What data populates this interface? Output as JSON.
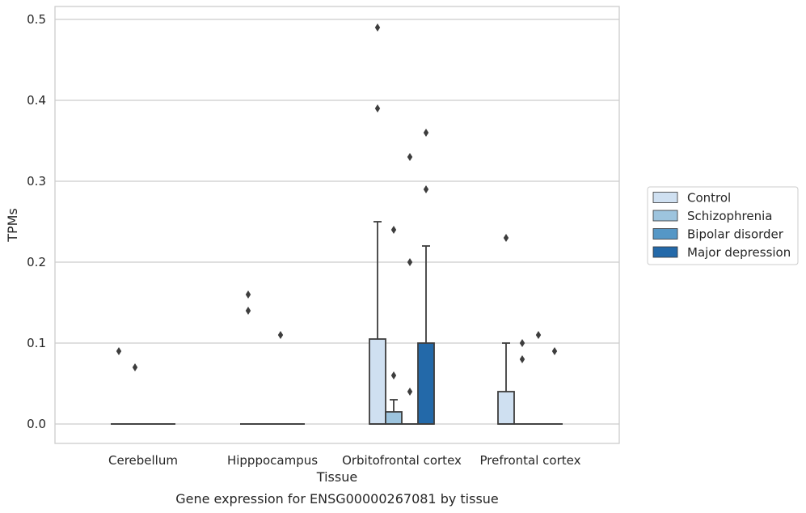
{
  "chart_data": {
    "type": "box",
    "title": "",
    "caption": "Gene expression for ENSG00000267081 by tissue",
    "xlabel": "Tissue",
    "ylabel": "TPMs",
    "ylim": [
      -0.024,
      0.515
    ],
    "yticks": [
      0.0,
      0.1,
      0.2,
      0.3,
      0.4,
      0.5
    ],
    "ytick_labels": [
      "0.0",
      "0.1",
      "0.2",
      "0.3",
      "0.4",
      "0.5"
    ],
    "grid": "horizontal",
    "legend_position": "right",
    "categories": [
      "Cerebellum",
      "Hipppocampus",
      "Orbitofrontal cortex",
      "Prefrontal cortex"
    ],
    "series": [
      {
        "name": "Control",
        "color": "#cfe0f1",
        "boxes": [
          {
            "q1": 0,
            "median": 0,
            "q3": 0,
            "whisker_low": 0,
            "whisker_high": 0,
            "outliers": [
              0.09
            ]
          },
          {
            "q1": 0,
            "median": 0,
            "q3": 0,
            "whisker_low": 0,
            "whisker_high": 0,
            "outliers": [
              0.16,
              0.14
            ]
          },
          {
            "q1": 0,
            "median": 0,
            "q3": 0.105,
            "whisker_low": 0,
            "whisker_high": 0.25,
            "outliers": [
              0.49,
              0.39
            ]
          },
          {
            "q1": 0,
            "median": 0,
            "q3": 0.04,
            "whisker_low": 0,
            "whisker_high": 0.1,
            "outliers": [
              0.23
            ]
          }
        ]
      },
      {
        "name": "Schizophrenia",
        "color": "#9dc4de",
        "boxes": [
          {
            "q1": 0,
            "median": 0,
            "q3": 0,
            "whisker_low": 0,
            "whisker_high": 0,
            "outliers": [
              0.07
            ]
          },
          {
            "q1": 0,
            "median": 0,
            "q3": 0,
            "whisker_low": 0,
            "whisker_high": 0,
            "outliers": []
          },
          {
            "q1": 0,
            "median": 0,
            "q3": 0.015,
            "whisker_low": 0,
            "whisker_high": 0.03,
            "outliers": [
              0.24,
              0.06
            ]
          },
          {
            "q1": 0,
            "median": 0,
            "q3": 0,
            "whisker_low": 0,
            "whisker_high": 0,
            "outliers": [
              0.1,
              0.08
            ]
          }
        ]
      },
      {
        "name": "Bipolar disorder",
        "color": "#5597c6",
        "boxes": [
          {
            "q1": 0,
            "median": 0,
            "q3": 0,
            "whisker_low": 0,
            "whisker_high": 0,
            "outliers": []
          },
          {
            "q1": 0,
            "median": 0,
            "q3": 0,
            "whisker_low": 0,
            "whisker_high": 0,
            "outliers": [
              0.11
            ]
          },
          {
            "q1": 0,
            "median": 0,
            "q3": 0,
            "whisker_low": 0,
            "whisker_high": 0,
            "outliers": [
              0.33,
              0.2,
              0.04
            ]
          },
          {
            "q1": 0,
            "median": 0,
            "q3": 0,
            "whisker_low": 0,
            "whisker_high": 0,
            "outliers": [
              0.11
            ]
          }
        ]
      },
      {
        "name": "Major depression",
        "color": "#2369a9",
        "boxes": [
          {
            "q1": 0,
            "median": 0,
            "q3": 0,
            "whisker_low": 0,
            "whisker_high": 0,
            "outliers": []
          },
          {
            "q1": 0,
            "median": 0,
            "q3": 0,
            "whisker_low": 0,
            "whisker_high": 0,
            "outliers": []
          },
          {
            "q1": 0,
            "median": 0,
            "q3": 0.1,
            "whisker_low": 0,
            "whisker_high": 0.22,
            "outliers": [
              0.36,
              0.29
            ]
          },
          {
            "q1": 0,
            "median": 0,
            "q3": 0,
            "whisker_low": 0,
            "whisker_high": 0,
            "outliers": [
              0.09
            ]
          }
        ]
      }
    ]
  }
}
